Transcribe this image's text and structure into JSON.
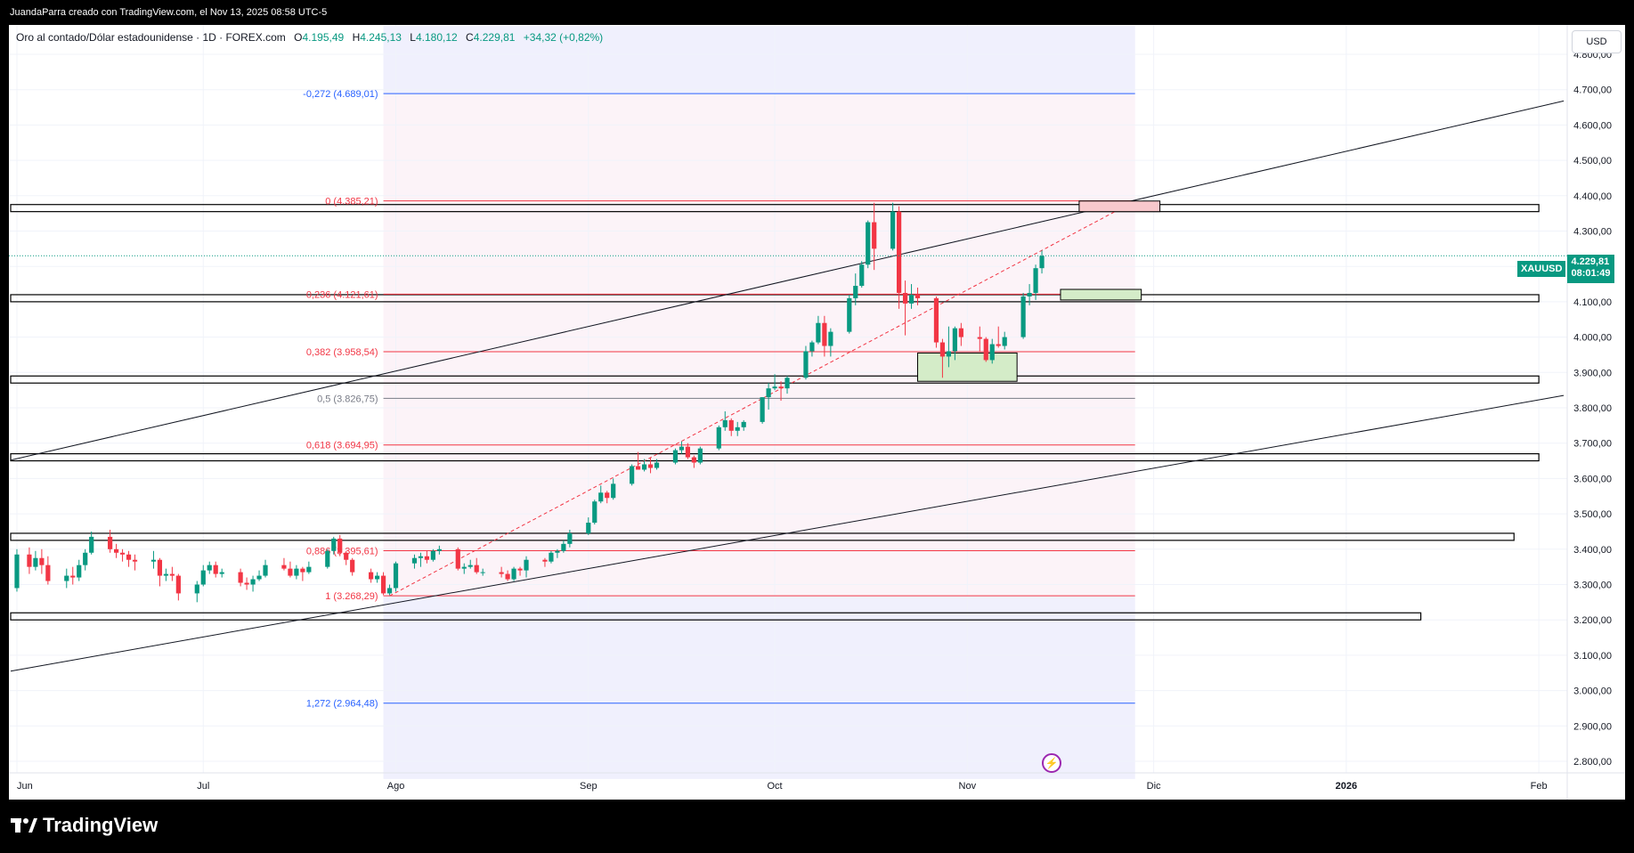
{
  "attribution": "JuandaParra creado con TradingView.com, el Nov 13, 2025 08:58 UTC-5",
  "brand": "TradingView",
  "symbol_header": {
    "title": "Oro al contado/Dólar estadounidense · 1D · FOREX.com",
    "open_label": "O",
    "open": "4.195,49",
    "high_label": "H",
    "high": "4.245,13",
    "low_label": "L",
    "low": "4.180,12",
    "close_label": "C",
    "close": "4.229,81",
    "change": "+34,32 (+0,82%)"
  },
  "currency": "USD",
  "price_tag": {
    "symbol": "XAUUSD",
    "price": "4.229,81",
    "countdown": "08:01:49"
  },
  "colors": {
    "up": "#089981",
    "down": "#f23645",
    "fib_red": "#f23645",
    "fib_blue": "#2962ff",
    "fib_gray": "#787b86"
  },
  "chart_data": {
    "type": "candlestick",
    "title": "Oro al contado/Dólar estadounidense · 1D · FOREX.com",
    "ylim": [
      2750,
      4880
    ],
    "y_ticks": [
      "2.800,00",
      "2.900,00",
      "3.000,00",
      "3.100,00",
      "3.200,00",
      "3.300,00",
      "3.400,00",
      "3.500,00",
      "3.600,00",
      "3.700,00",
      "3.800,00",
      "3.900,00",
      "4.000,00",
      "4.100,00",
      "4.200,00",
      "4.300,00",
      "4.400,00",
      "4.500,00",
      "4.600,00",
      "4.700,00",
      "4.800,00"
    ],
    "y_tick_values": [
      2800,
      2900,
      3000,
      3100,
      3200,
      3300,
      3400,
      3500,
      3600,
      3700,
      3800,
      3900,
      4000,
      4100,
      4200,
      4300,
      4400,
      4500,
      4600,
      4700,
      4800
    ],
    "x_ticks": [
      {
        "label": "Jun",
        "date": "2025-06-01"
      },
      {
        "label": "Jul",
        "date": "2025-07-01"
      },
      {
        "label": "Ago",
        "date": "2025-08-01"
      },
      {
        "label": "Sep",
        "date": "2025-09-01"
      },
      {
        "label": "Oct",
        "date": "2025-10-01"
      },
      {
        "label": "Nov",
        "date": "2025-11-01"
      },
      {
        "label": "Dic",
        "date": "2025-12-01"
      },
      {
        "label": "2026",
        "date": "2026-01-01"
      },
      {
        "label": "Feb",
        "date": "2026-02-01"
      }
    ],
    "fib_levels": [
      {
        "label": "-0,272 (4.689,01)",
        "value": 4689.01,
        "color": "#2962ff"
      },
      {
        "label": "0 (4.385,21)",
        "value": 4385.21,
        "color": "#f23645"
      },
      {
        "label": "0,236 (4.121,61)",
        "value": 4121.61,
        "color": "#f23645"
      },
      {
        "label": "0,382 (3.958,54)",
        "value": 3958.54,
        "color": "#f23645"
      },
      {
        "label": "0,5 (3.826,75)",
        "value": 3826.75,
        "color": "#787b86"
      },
      {
        "label": "0,618 (3.694,95)",
        "value": 3694.95,
        "color": "#f23645"
      },
      {
        "label": "0,886 (3.395,61)",
        "value": 3395.61,
        "color": "#f23645"
      },
      {
        "label": "1 (3.268,29)",
        "value": 3268.29,
        "color": "#f23645"
      },
      {
        "label": "1,272 (2.964,48)",
        "value": 2964.48,
        "color": "#2962ff"
      }
    ],
    "fib_range": [
      "2025-07-30",
      "2025-11-28"
    ],
    "zones": [
      {
        "y1": 4355,
        "y2": 4375,
        "x1": "2025-05-31",
        "x2": "2026-02-01"
      },
      {
        "y1": 4100,
        "y2": 4120,
        "x1": "2025-05-31",
        "x2": "2026-02-01"
      },
      {
        "y1": 3870,
        "y2": 3890,
        "x1": "2025-05-31",
        "x2": "2026-02-01"
      },
      {
        "y1": 3650,
        "y2": 3670,
        "x1": "2025-05-31",
        "x2": "2026-02-01"
      },
      {
        "y1": 3425,
        "y2": 3445,
        "x1": "2025-05-31",
        "x2": "2026-01-28"
      },
      {
        "y1": 3200,
        "y2": 3220,
        "x1": "2025-05-31",
        "x2": "2026-01-13"
      }
    ],
    "boxes": [
      {
        "x1": "2025-11-19",
        "x2": "2025-12-02",
        "y1": 4355,
        "y2": 4385,
        "fill": "#f8c8cc"
      },
      {
        "x1": "2025-11-16",
        "x2": "2025-11-29",
        "y1": 4105,
        "y2": 4135,
        "fill": "#d4ecc8"
      },
      {
        "x1": "2025-10-24",
        "x2": "2025-11-09",
        "y1": 3875,
        "y2": 3955,
        "fill": "#d4ecc8"
      }
    ],
    "trendlines": [
      {
        "x1": "2025-05-31",
        "y1": 3652,
        "x2": "2026-02-05",
        "y2": 4668,
        "style": "solid"
      },
      {
        "x1": "2025-05-31",
        "y1": 3055,
        "x2": "2026-02-05",
        "y2": 3835,
        "style": "solid"
      },
      {
        "x1": "2025-07-31",
        "y1": 3268,
        "x2": "2025-11-28",
        "y2": 4385,
        "style": "dashed"
      }
    ],
    "candles": [
      {
        "d": "2025-06-01",
        "o": 3290,
        "h": 3400,
        "l": 3280,
        "c": 3385
      },
      {
        "d": "2025-06-03",
        "o": 3385,
        "h": 3405,
        "l": 3330,
        "c": 3350
      },
      {
        "d": "2025-06-04",
        "o": 3350,
        "h": 3395,
        "l": 3340,
        "c": 3375
      },
      {
        "d": "2025-06-05",
        "o": 3375,
        "h": 3400,
        "l": 3330,
        "c": 3355
      },
      {
        "d": "2025-06-06",
        "o": 3355,
        "h": 3380,
        "l": 3300,
        "c": 3310
      },
      {
        "d": "2025-06-09",
        "o": 3310,
        "h": 3345,
        "l": 3290,
        "c": 3325
      },
      {
        "d": "2025-06-10",
        "o": 3325,
        "h": 3350,
        "l": 3300,
        "c": 3320
      },
      {
        "d": "2025-06-11",
        "o": 3320,
        "h": 3370,
        "l": 3310,
        "c": 3355
      },
      {
        "d": "2025-06-12",
        "o": 3355,
        "h": 3400,
        "l": 3340,
        "c": 3390
      },
      {
        "d": "2025-06-13",
        "o": 3390,
        "h": 3450,
        "l": 3385,
        "c": 3435
      },
      {
        "d": "2025-06-16",
        "o": 3435,
        "h": 3455,
        "l": 3390,
        "c": 3400
      },
      {
        "d": "2025-06-17",
        "o": 3400,
        "h": 3415,
        "l": 3375,
        "c": 3390
      },
      {
        "d": "2025-06-18",
        "o": 3390,
        "h": 3400,
        "l": 3365,
        "c": 3385
      },
      {
        "d": "2025-06-19",
        "o": 3385,
        "h": 3395,
        "l": 3350,
        "c": 3370
      },
      {
        "d": "2025-06-20",
        "o": 3370,
        "h": 3385,
        "l": 3340,
        "c": 3365
      },
      {
        "d": "2025-06-23",
        "o": 3365,
        "h": 3395,
        "l": 3345,
        "c": 3370
      },
      {
        "d": "2025-06-24",
        "o": 3370,
        "h": 3375,
        "l": 3295,
        "c": 3325
      },
      {
        "d": "2025-06-25",
        "o": 3325,
        "h": 3345,
        "l": 3310,
        "c": 3330
      },
      {
        "d": "2025-06-26",
        "o": 3330,
        "h": 3350,
        "l": 3310,
        "c": 3325
      },
      {
        "d": "2025-06-27",
        "o": 3325,
        "h": 3330,
        "l": 3255,
        "c": 3275
      },
      {
        "d": "2025-06-30",
        "o": 3275,
        "h": 3310,
        "l": 3250,
        "c": 3300
      },
      {
        "d": "2025-07-01",
        "o": 3300,
        "h": 3355,
        "l": 3295,
        "c": 3340
      },
      {
        "d": "2025-07-02",
        "o": 3340,
        "h": 3365,
        "l": 3330,
        "c": 3355
      },
      {
        "d": "2025-07-03",
        "o": 3355,
        "h": 3365,
        "l": 3320,
        "c": 3330
      },
      {
        "d": "2025-07-04",
        "o": 3330,
        "h": 3345,
        "l": 3320,
        "c": 3335
      },
      {
        "d": "2025-07-07",
        "o": 3335,
        "h": 3345,
        "l": 3295,
        "c": 3305
      },
      {
        "d": "2025-07-08",
        "o": 3305,
        "h": 3320,
        "l": 3285,
        "c": 3300
      },
      {
        "d": "2025-07-09",
        "o": 3300,
        "h": 3325,
        "l": 3280,
        "c": 3315
      },
      {
        "d": "2025-07-10",
        "o": 3315,
        "h": 3340,
        "l": 3310,
        "c": 3325
      },
      {
        "d": "2025-07-11",
        "o": 3325,
        "h": 3370,
        "l": 3320,
        "c": 3355
      },
      {
        "d": "2025-07-14",
        "o": 3355,
        "h": 3375,
        "l": 3340,
        "c": 3345
      },
      {
        "d": "2025-07-15",
        "o": 3345,
        "h": 3365,
        "l": 3320,
        "c": 3325
      },
      {
        "d": "2025-07-16",
        "o": 3325,
        "h": 3355,
        "l": 3315,
        "c": 3345
      },
      {
        "d": "2025-07-17",
        "o": 3345,
        "h": 3350,
        "l": 3310,
        "c": 3335
      },
      {
        "d": "2025-07-18",
        "o": 3335,
        "h": 3365,
        "l": 3330,
        "c": 3350
      },
      {
        "d": "2025-07-21",
        "o": 3350,
        "h": 3400,
        "l": 3345,
        "c": 3395
      },
      {
        "d": "2025-07-22",
        "o": 3395,
        "h": 3435,
        "l": 3385,
        "c": 3430
      },
      {
        "d": "2025-07-23",
        "o": 3430,
        "h": 3440,
        "l": 3380,
        "c": 3390
      },
      {
        "d": "2025-07-24",
        "o": 3390,
        "h": 3395,
        "l": 3355,
        "c": 3370
      },
      {
        "d": "2025-07-25",
        "o": 3370,
        "h": 3375,
        "l": 3325,
        "c": 3335
      },
      {
        "d": "2025-07-28",
        "o": 3335,
        "h": 3345,
        "l": 3305,
        "c": 3315
      },
      {
        "d": "2025-07-29",
        "o": 3315,
        "h": 3335,
        "l": 3305,
        "c": 3325
      },
      {
        "d": "2025-07-30",
        "o": 3325,
        "h": 3335,
        "l": 3270,
        "c": 3275
      },
      {
        "d": "2025-07-31",
        "o": 3275,
        "h": 3300,
        "l": 3270,
        "c": 3290
      },
      {
        "d": "2025-08-01",
        "o": 3290,
        "h": 3365,
        "l": 3280,
        "c": 3360
      },
      {
        "d": "2025-08-04",
        "o": 3360,
        "h": 3385,
        "l": 3345,
        "c": 3375
      },
      {
        "d": "2025-08-05",
        "o": 3375,
        "h": 3390,
        "l": 3350,
        "c": 3380
      },
      {
        "d": "2025-08-06",
        "o": 3380,
        "h": 3395,
        "l": 3360,
        "c": 3370
      },
      {
        "d": "2025-08-07",
        "o": 3370,
        "h": 3400,
        "l": 3365,
        "c": 3395
      },
      {
        "d": "2025-08-08",
        "o": 3395,
        "h": 3410,
        "l": 3385,
        "c": 3400
      },
      {
        "d": "2025-08-11",
        "o": 3400,
        "h": 3405,
        "l": 3340,
        "c": 3345
      },
      {
        "d": "2025-08-12",
        "o": 3345,
        "h": 3360,
        "l": 3330,
        "c": 3350
      },
      {
        "d": "2025-08-13",
        "o": 3350,
        "h": 3370,
        "l": 3345,
        "c": 3355
      },
      {
        "d": "2025-08-14",
        "o": 3355,
        "h": 3375,
        "l": 3330,
        "c": 3335
      },
      {
        "d": "2025-08-15",
        "o": 3335,
        "h": 3345,
        "l": 3325,
        "c": 3335
      },
      {
        "d": "2025-08-18",
        "o": 3335,
        "h": 3350,
        "l": 3320,
        "c": 3330
      },
      {
        "d": "2025-08-19",
        "o": 3330,
        "h": 3340,
        "l": 3310,
        "c": 3315
      },
      {
        "d": "2025-08-20",
        "o": 3315,
        "h": 3350,
        "l": 3310,
        "c": 3345
      },
      {
        "d": "2025-08-21",
        "o": 3345,
        "h": 3350,
        "l": 3325,
        "c": 3340
      },
      {
        "d": "2025-08-22",
        "o": 3340,
        "h": 3380,
        "l": 3320,
        "c": 3370
      },
      {
        "d": "2025-08-25",
        "o": 3370,
        "h": 3375,
        "l": 3350,
        "c": 3365
      },
      {
        "d": "2025-08-26",
        "o": 3365,
        "h": 3395,
        "l": 3360,
        "c": 3390
      },
      {
        "d": "2025-08-27",
        "o": 3390,
        "h": 3400,
        "l": 3375,
        "c": 3395
      },
      {
        "d": "2025-08-28",
        "o": 3395,
        "h": 3425,
        "l": 3390,
        "c": 3415
      },
      {
        "d": "2025-08-29",
        "o": 3415,
        "h": 3455,
        "l": 3405,
        "c": 3445
      },
      {
        "d": "2025-09-01",
        "o": 3445,
        "h": 3490,
        "l": 3440,
        "c": 3475
      },
      {
        "d": "2025-09-02",
        "o": 3475,
        "h": 3540,
        "l": 3470,
        "c": 3535
      },
      {
        "d": "2025-09-03",
        "o": 3535,
        "h": 3580,
        "l": 3530,
        "c": 3560
      },
      {
        "d": "2025-09-04",
        "o": 3560,
        "h": 3565,
        "l": 3530,
        "c": 3545
      },
      {
        "d": "2025-09-05",
        "o": 3545,
        "h": 3600,
        "l": 3540,
        "c": 3585
      },
      {
        "d": "2025-09-08",
        "o": 3585,
        "h": 3640,
        "l": 3580,
        "c": 3635
      },
      {
        "d": "2025-09-09",
        "o": 3635,
        "h": 3675,
        "l": 3625,
        "c": 3625
      },
      {
        "d": "2025-09-10",
        "o": 3625,
        "h": 3655,
        "l": 3620,
        "c": 3640
      },
      {
        "d": "2025-09-11",
        "o": 3640,
        "h": 3660,
        "l": 3615,
        "c": 3630
      },
      {
        "d": "2025-09-12",
        "o": 3630,
        "h": 3655,
        "l": 3625,
        "c": 3645
      },
      {
        "d": "2025-09-15",
        "o": 3645,
        "h": 3685,
        "l": 3640,
        "c": 3680
      },
      {
        "d": "2025-09-16",
        "o": 3680,
        "h": 3705,
        "l": 3670,
        "c": 3690
      },
      {
        "d": "2025-09-17",
        "o": 3690,
        "h": 3700,
        "l": 3655,
        "c": 3660
      },
      {
        "d": "2025-09-18",
        "o": 3660,
        "h": 3665,
        "l": 3630,
        "c": 3645
      },
      {
        "d": "2025-09-19",
        "o": 3645,
        "h": 3690,
        "l": 3640,
        "c": 3685
      },
      {
        "d": "2025-09-22",
        "o": 3685,
        "h": 3750,
        "l": 3680,
        "c": 3745
      },
      {
        "d": "2025-09-23",
        "o": 3745,
        "h": 3790,
        "l": 3735,
        "c": 3765
      },
      {
        "d": "2025-09-24",
        "o": 3765,
        "h": 3770,
        "l": 3720,
        "c": 3735
      },
      {
        "d": "2025-09-25",
        "o": 3735,
        "h": 3760,
        "l": 3720,
        "c": 3745
      },
      {
        "d": "2025-09-26",
        "o": 3745,
        "h": 3765,
        "l": 3735,
        "c": 3760
      },
      {
        "d": "2025-09-29",
        "o": 3760,
        "h": 3830,
        "l": 3755,
        "c": 3830
      },
      {
        "d": "2025-09-30",
        "o": 3830,
        "h": 3870,
        "l": 3795,
        "c": 3855
      },
      {
        "d": "2025-10-01",
        "o": 3855,
        "h": 3895,
        "l": 3850,
        "c": 3860
      },
      {
        "d": "2025-10-02",
        "o": 3860,
        "h": 3875,
        "l": 3820,
        "c": 3855
      },
      {
        "d": "2025-10-03",
        "o": 3855,
        "h": 3890,
        "l": 3840,
        "c": 3885
      },
      {
        "d": "2025-10-06",
        "o": 3885,
        "h": 3975,
        "l": 3880,
        "c": 3960
      },
      {
        "d": "2025-10-07",
        "o": 3960,
        "h": 3990,
        "l": 3945,
        "c": 3985
      },
      {
        "d": "2025-10-08",
        "o": 3985,
        "h": 4060,
        "l": 3980,
        "c": 4040
      },
      {
        "d": "2025-10-09",
        "o": 4040,
        "h": 4060,
        "l": 3945,
        "c": 3975
      },
      {
        "d": "2025-10-10",
        "o": 3975,
        "h": 4025,
        "l": 3945,
        "c": 4015
      },
      {
        "d": "2025-10-13",
        "o": 4015,
        "h": 4120,
        "l": 4010,
        "c": 4110
      },
      {
        "d": "2025-10-14",
        "o": 4110,
        "h": 4180,
        "l": 4090,
        "c": 4145
      },
      {
        "d": "2025-10-15",
        "o": 4145,
        "h": 4215,
        "l": 4140,
        "c": 4205
      },
      {
        "d": "2025-10-16",
        "o": 4205,
        "h": 4330,
        "l": 4195,
        "c": 4325
      },
      {
        "d": "2025-10-17",
        "o": 4325,
        "h": 4380,
        "l": 4190,
        "c": 4250
      },
      {
        "d": "2025-10-20",
        "o": 4250,
        "h": 4380,
        "l": 4245,
        "c": 4355
      },
      {
        "d": "2025-10-21",
        "o": 4355,
        "h": 4370,
        "l": 4080,
        "c": 4125
      },
      {
        "d": "2025-10-22",
        "o": 4125,
        "h": 4160,
        "l": 4005,
        "c": 4095
      },
      {
        "d": "2025-10-23",
        "o": 4095,
        "h": 4150,
        "l": 4080,
        "c": 4120
      },
      {
        "d": "2025-10-24",
        "o": 4120,
        "h": 4140,
        "l": 4090,
        "c": 4110
      },
      {
        "d": "2025-10-27",
        "o": 4110,
        "h": 4115,
        "l": 3970,
        "c": 3985
      },
      {
        "d": "2025-10-28",
        "o": 3985,
        "h": 3995,
        "l": 3885,
        "c": 3945
      },
      {
        "d": "2025-10-29",
        "o": 3945,
        "h": 4030,
        "l": 3915,
        "c": 3960
      },
      {
        "d": "2025-10-30",
        "o": 3960,
        "h": 4030,
        "l": 3935,
        "c": 4025
      },
      {
        "d": "2025-10-31",
        "o": 4025,
        "h": 4040,
        "l": 3975,
        "c": 4000
      },
      {
        "d": "2025-11-03",
        "o": 4000,
        "h": 4030,
        "l": 3960,
        "c": 3995
      },
      {
        "d": "2025-11-04",
        "o": 3995,
        "h": 4000,
        "l": 3930,
        "c": 3935
      },
      {
        "d": "2025-11-05",
        "o": 3935,
        "h": 3995,
        "l": 3925,
        "c": 3980
      },
      {
        "d": "2025-11-06",
        "o": 3980,
        "h": 4030,
        "l": 3970,
        "c": 3975
      },
      {
        "d": "2025-11-07",
        "o": 3975,
        "h": 4015,
        "l": 3965,
        "c": 4000
      },
      {
        "d": "2025-11-10",
        "o": 4000,
        "h": 4125,
        "l": 3995,
        "c": 4115
      },
      {
        "d": "2025-11-11",
        "o": 4115,
        "h": 4150,
        "l": 4090,
        "c": 4125
      },
      {
        "d": "2025-11-12",
        "o": 4125,
        "h": 4205,
        "l": 4105,
        "c": 4195
      },
      {
        "d": "2025-11-13",
        "o": 4195,
        "h": 4245,
        "l": 4180,
        "c": 4230
      }
    ]
  }
}
